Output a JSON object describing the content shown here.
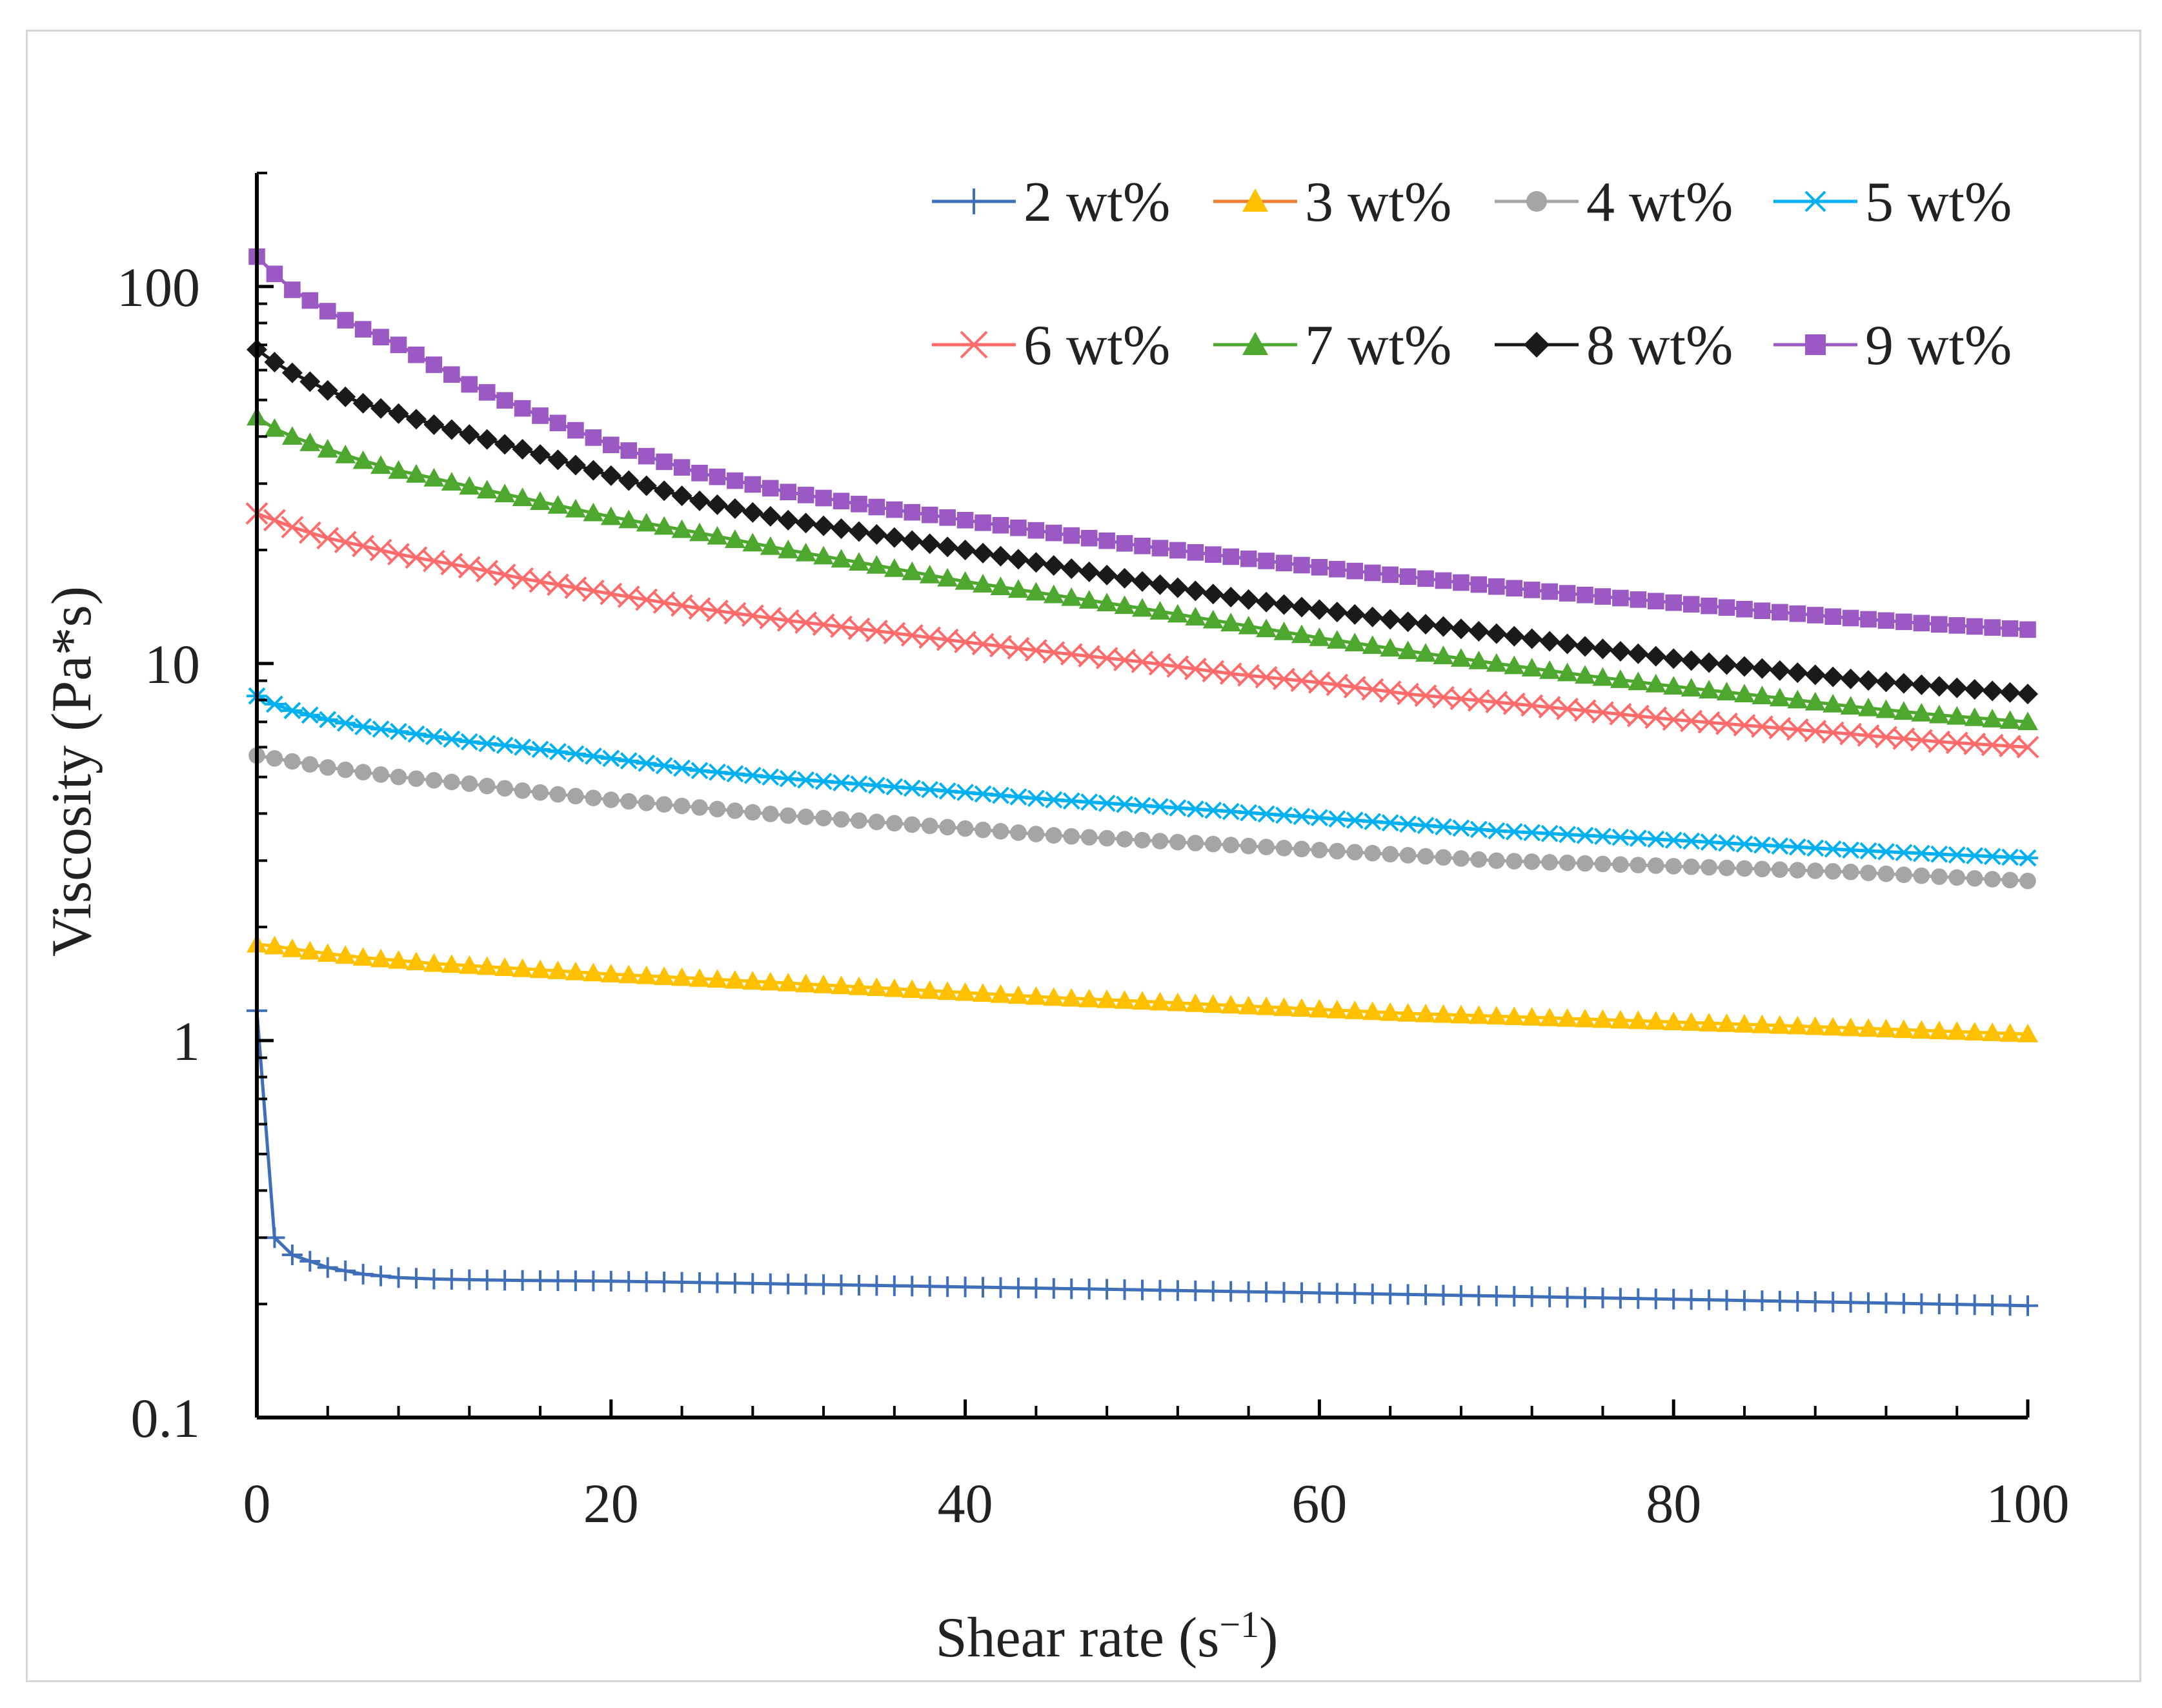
{
  "chart_data": {
    "type": "line",
    "xlabel": "Shear rate (s",
    "xlabel_sup": "−1",
    "xlabel_end": ")",
    "ylabel": "Viscosity (Pa*s)",
    "xlim": [
      0,
      100
    ],
    "ylim": [
      0.1,
      200
    ],
    "y_scale": "log",
    "x_ticks": [
      "0",
      "20",
      "40",
      "60",
      "80",
      "100"
    ],
    "y_ticks": [
      "0.1",
      "1",
      "10",
      "100"
    ],
    "grid": false,
    "legend_position": "top-right",
    "x": [
      0,
      1,
      2,
      4,
      6,
      8,
      10,
      12,
      15,
      20,
      25,
      30,
      35,
      40,
      45,
      50,
      55,
      60,
      65,
      70,
      75,
      80,
      85,
      90,
      95,
      100
    ],
    "series": [
      {
        "name": "2 wt%",
        "color": "#3f6fb8",
        "marker": "plus",
        "values": [
          1.2,
          0.3,
          0.27,
          0.25,
          0.24,
          0.235,
          0.233,
          0.232,
          0.231,
          0.23,
          0.228,
          0.226,
          0.224,
          0.222,
          0.22,
          0.218,
          0.216,
          0.214,
          0.212,
          0.21,
          0.208,
          0.206,
          0.204,
          0.202,
          0.2,
          0.198
        ]
      },
      {
        "name": "3 wt%",
        "color": "#ffc000",
        "line_color": "#ed7d31",
        "marker": "triangle",
        "values": [
          1.8,
          1.78,
          1.75,
          1.7,
          1.66,
          1.63,
          1.6,
          1.58,
          1.55,
          1.5,
          1.46,
          1.42,
          1.38,
          1.34,
          1.3,
          1.27,
          1.24,
          1.21,
          1.18,
          1.16,
          1.14,
          1.12,
          1.1,
          1.08,
          1.06,
          1.04
        ]
      },
      {
        "name": "4 wt%",
        "color": "#a5a5a5",
        "marker": "circle",
        "values": [
          5.7,
          5.6,
          5.5,
          5.3,
          5.15,
          5.0,
          4.9,
          4.8,
          4.6,
          4.35,
          4.15,
          3.95,
          3.8,
          3.65,
          3.5,
          3.4,
          3.3,
          3.2,
          3.1,
          3.0,
          2.95,
          2.9,
          2.85,
          2.8,
          2.72,
          2.65
        ]
      },
      {
        "name": "5 wt%",
        "color": "#00b0f0",
        "marker": "asterisk",
        "values": [
          8.2,
          7.8,
          7.5,
          7.1,
          6.8,
          6.6,
          6.4,
          6.2,
          6.0,
          5.6,
          5.2,
          4.95,
          4.75,
          4.55,
          4.35,
          4.2,
          4.05,
          3.9,
          3.75,
          3.6,
          3.5,
          3.4,
          3.3,
          3.2,
          3.12,
          3.05
        ]
      },
      {
        "name": "6 wt%",
        "color": "#ff6b6b",
        "marker": "x",
        "values": [
          25,
          24,
          23,
          21.5,
          20.5,
          19.5,
          18.7,
          18,
          16.8,
          15.3,
          14,
          13,
          12.2,
          11.4,
          10.7,
          10.1,
          9.4,
          8.9,
          8.3,
          7.9,
          7.5,
          7.1,
          6.8,
          6.5,
          6.2,
          6.0
        ]
      },
      {
        "name": "7 wt%",
        "color": "#4ea72e",
        "marker": "triangle",
        "values": [
          45,
          42,
          40,
          37,
          34.5,
          32.5,
          31,
          29.5,
          27.5,
          24.5,
          22.2,
          20,
          18.2,
          16.5,
          15.2,
          14,
          12.8,
          11.7,
          10.8,
          10,
          9.3,
          8.7,
          8.2,
          7.7,
          7.3,
          7.0
        ]
      },
      {
        "name": "8 wt%",
        "color": "#1a1a1a",
        "marker": "diamond",
        "values": [
          68,
          63,
          59,
          53,
          49,
          46,
          43,
          40.5,
          37,
          31.5,
          27,
          24,
          22,
          20,
          18.2,
          16.5,
          15,
          13.9,
          12.9,
          12,
          11.1,
          10.3,
          9.7,
          9.1,
          8.7,
          8.3
        ]
      },
      {
        "name": "9 wt%",
        "color": "#9b59c4",
        "marker": "square",
        "values": [
          120,
          108,
          98,
          86,
          77,
          70,
          62,
          55,
          47.5,
          38,
          32,
          28.5,
          26,
          24,
          22.2,
          20.5,
          19.2,
          18,
          17,
          16,
          15.2,
          14.5,
          13.8,
          13.2,
          12.7,
          12.3
        ]
      }
    ]
  }
}
